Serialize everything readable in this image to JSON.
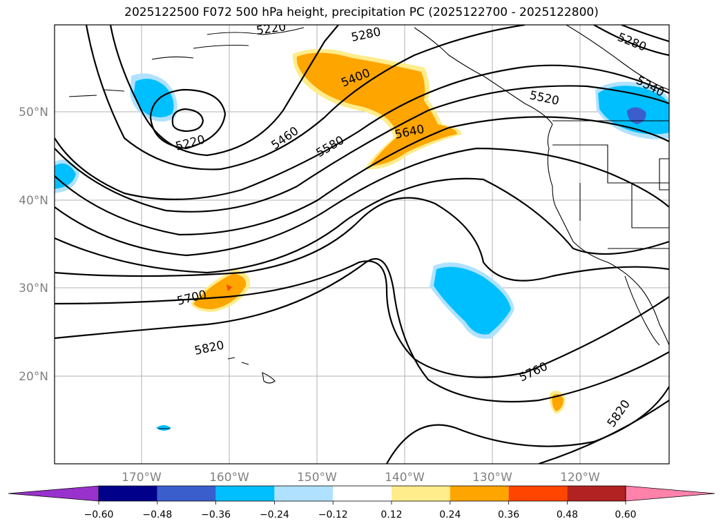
{
  "title": "2025122500 F072 500 hPa height, precipitation PC (2025122700 - 2025122800)",
  "map": {
    "lat_labels": [
      "50°N",
      "40°N",
      "30°N",
      "20°N"
    ],
    "lon_labels": [
      "170°W",
      "160°W",
      "150°W",
      "140°W",
      "130°W",
      "120°W"
    ],
    "contour_labels": [
      "5220",
      "5220",
      "5280",
      "5280",
      "5340",
      "5400",
      "5460",
      "5520",
      "5580",
      "5640",
      "5700",
      "5760",
      "5820",
      "5820"
    ]
  },
  "colorbar": {
    "ticks": [
      "−0.60",
      "−0.48",
      "−0.36",
      "−0.24",
      "−0.12",
      "0.12",
      "0.24",
      "0.36",
      "0.48",
      "0.60"
    ],
    "colors": [
      "#9932cc",
      "#00008b",
      "#3a5fcd",
      "#00bfff",
      "#b0e2ff",
      "#ffffff",
      "#ffec8b",
      "#ffa500",
      "#ff4500",
      "#b22222",
      "#ff82ab"
    ]
  }
}
